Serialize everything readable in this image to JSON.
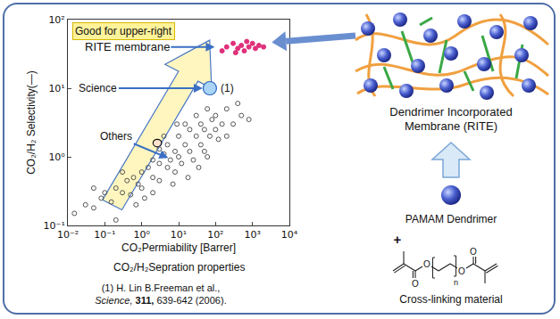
{
  "chart_data": {
    "type": "scatter",
    "x_label": "CO₂Permiability [Barrer]",
    "y_label": "CO₂/H₂ Selectivity(—)",
    "caption": "CO₂/H₂Sepration properties",
    "region_label": "Good for upper-right",
    "log": true,
    "grid": false,
    "xlim": [
      0.01,
      10000
    ],
    "ylim": [
      0.1,
      100
    ],
    "xticks": [
      {
        "value": 0.01,
        "label": "10⁻²"
      },
      {
        "value": 0.1,
        "label": "10⁻¹"
      },
      {
        "value": 1,
        "label": "10⁰"
      },
      {
        "value": 10,
        "label": "10¹"
      },
      {
        "value": 100,
        "label": "10²"
      },
      {
        "value": 1000,
        "label": "10³"
      },
      {
        "value": 10000,
        "label": "10⁴"
      }
    ],
    "yticks": [
      {
        "value": 0.1,
        "label": "10⁻¹"
      },
      {
        "value": 1,
        "label": "10⁰"
      },
      {
        "value": 10,
        "label": "10¹"
      },
      {
        "value": 100,
        "label": "10²"
      }
    ],
    "series": [
      {
        "name": "RITE membrane",
        "color": "#e0307a",
        "marker": "circle",
        "x": [
          150,
          200,
          300,
          350,
          400,
          500,
          600,
          700,
          800,
          1000,
          1200,
          1500,
          2000
        ],
        "y": [
          35,
          40,
          45,
          33,
          38,
          42,
          35,
          48,
          40,
          45,
          38,
          42,
          40
        ]
      },
      {
        "name": "Science",
        "label": "(1)",
        "color": "#a9d4f5",
        "marker": "circle",
        "x": [
          70
        ],
        "y": [
          10
        ]
      },
      {
        "name": "Others",
        "color": "#555555",
        "marker": "circle-open",
        "x": [
          0.015,
          0.03,
          0.05,
          0.05,
          0.08,
          0.1,
          0.15,
          0.2,
          0.2,
          0.3,
          0.3,
          0.4,
          0.5,
          0.6,
          0.7,
          0.8,
          1,
          1,
          1.2,
          1.5,
          2,
          2,
          2,
          3,
          3,
          3,
          4,
          4,
          5,
          5,
          6,
          7,
          8,
          8,
          9,
          10,
          10,
          12,
          15,
          15,
          18,
          20,
          20,
          25,
          30,
          30,
          35,
          40,
          40,
          50,
          50,
          60,
          60,
          70,
          80,
          100,
          100,
          120,
          150,
          200,
          200,
          300,
          400,
          500,
          800
        ],
        "y": [
          0.15,
          0.2,
          0.18,
          0.35,
          0.25,
          0.3,
          0.22,
          0.12,
          0.35,
          0.3,
          0.6,
          0.45,
          0.28,
          0.5,
          0.2,
          0.4,
          0.6,
          0.35,
          0.25,
          0.7,
          0.5,
          0.9,
          0.3,
          0.8,
          0.45,
          1.3,
          1.1,
          2,
          0.7,
          1.5,
          0.9,
          0.4,
          1.2,
          0.6,
          3,
          1,
          2,
          0.8,
          1.5,
          3,
          0.5,
          1.2,
          2.5,
          0.9,
          2,
          4,
          0.7,
          1.5,
          3,
          2.5,
          1.2,
          5,
          1,
          2,
          3.5,
          2.5,
          4,
          1.8,
          3,
          5,
          2,
          3,
          6,
          4,
          3.5
        ]
      }
    ]
  },
  "diagram": {
    "membrane_label": "Dendrimer Incorporated Membrane (RITE)",
    "dendrimer_label": "PAMAM Dendrimer",
    "plus": "+",
    "crosslinker": {
      "label": "Cross-linking material",
      "atoms": [
        "O",
        "O",
        "O",
        "O"
      ],
      "repeat": "n"
    }
  },
  "reference": {
    "authors": "(1) H. Lin B.Freeman et al.,",
    "journal": "Science,",
    "volume": "311,",
    "pages": "639-642 (2006)."
  }
}
